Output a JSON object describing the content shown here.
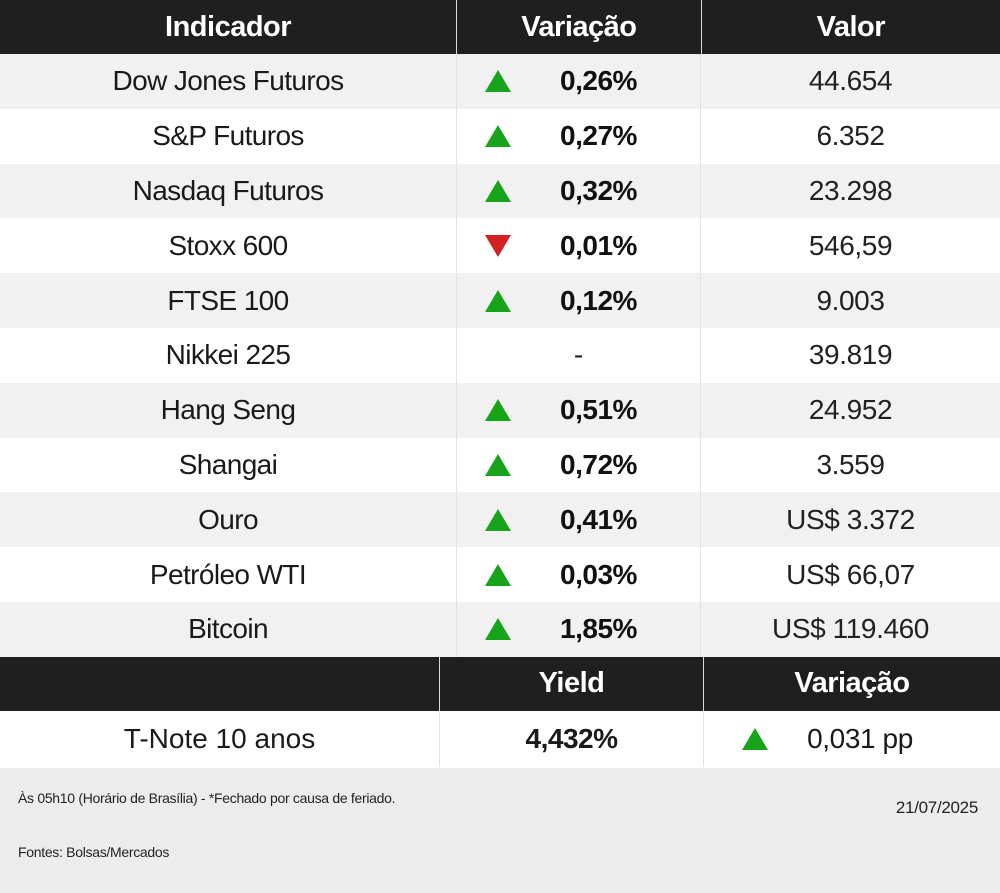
{
  "header": {
    "col1": "Indicador",
    "col2": "Variação",
    "col3": "Valor"
  },
  "rows": [
    {
      "name": "Dow Jones Futuros",
      "direction": "up",
      "change": "0,26%",
      "value": "44.654"
    },
    {
      "name": "S&P Futuros",
      "direction": "up",
      "change": "0,27%",
      "value": "6.352"
    },
    {
      "name": "Nasdaq Futuros",
      "direction": "up",
      "change": "0,32%",
      "value": "23.298"
    },
    {
      "name": "Stoxx 600",
      "direction": "down",
      "change": "0,01%",
      "value": "546,59"
    },
    {
      "name": "FTSE 100",
      "direction": "up",
      "change": "0,12%",
      "value": "9.003"
    },
    {
      "name": "Nikkei 225",
      "direction": "none",
      "change": "-",
      "value": "39.819"
    },
    {
      "name": "Hang Seng",
      "direction": "up",
      "change": "0,51%",
      "value": "24.952"
    },
    {
      "name": "Shangai",
      "direction": "up",
      "change": "0,72%",
      "value": "3.559"
    },
    {
      "name": "Ouro",
      "direction": "up",
      "change": "0,41%",
      "value": "US$ 3.372"
    },
    {
      "name": "Petróleo WTI",
      "direction": "up",
      "change": "0,03%",
      "value": "US$ 66,07"
    },
    {
      "name": "Bitcoin",
      "direction": "up",
      "change": "1,85%",
      "value": "US$ 119.460"
    }
  ],
  "treasury": {
    "header": {
      "col1": "",
      "col2": "Yield",
      "col3": "Variação"
    },
    "row": {
      "name": "T-Note 10 anos",
      "yield": "4,432%",
      "direction": "up",
      "change": "0,031 pp"
    }
  },
  "footer": {
    "note": "Às 05h10 (Horário de Brasília) - *Fechado por causa de feriado.",
    "date": "21/07/2025",
    "sources": "Fontes: Bolsas/Mercados"
  },
  "colors": {
    "header_bg": "#1f1f1f",
    "up": "#17a31a",
    "down": "#d42020",
    "stripe": "#f1f1f1",
    "footer_bg": "#ececec"
  }
}
